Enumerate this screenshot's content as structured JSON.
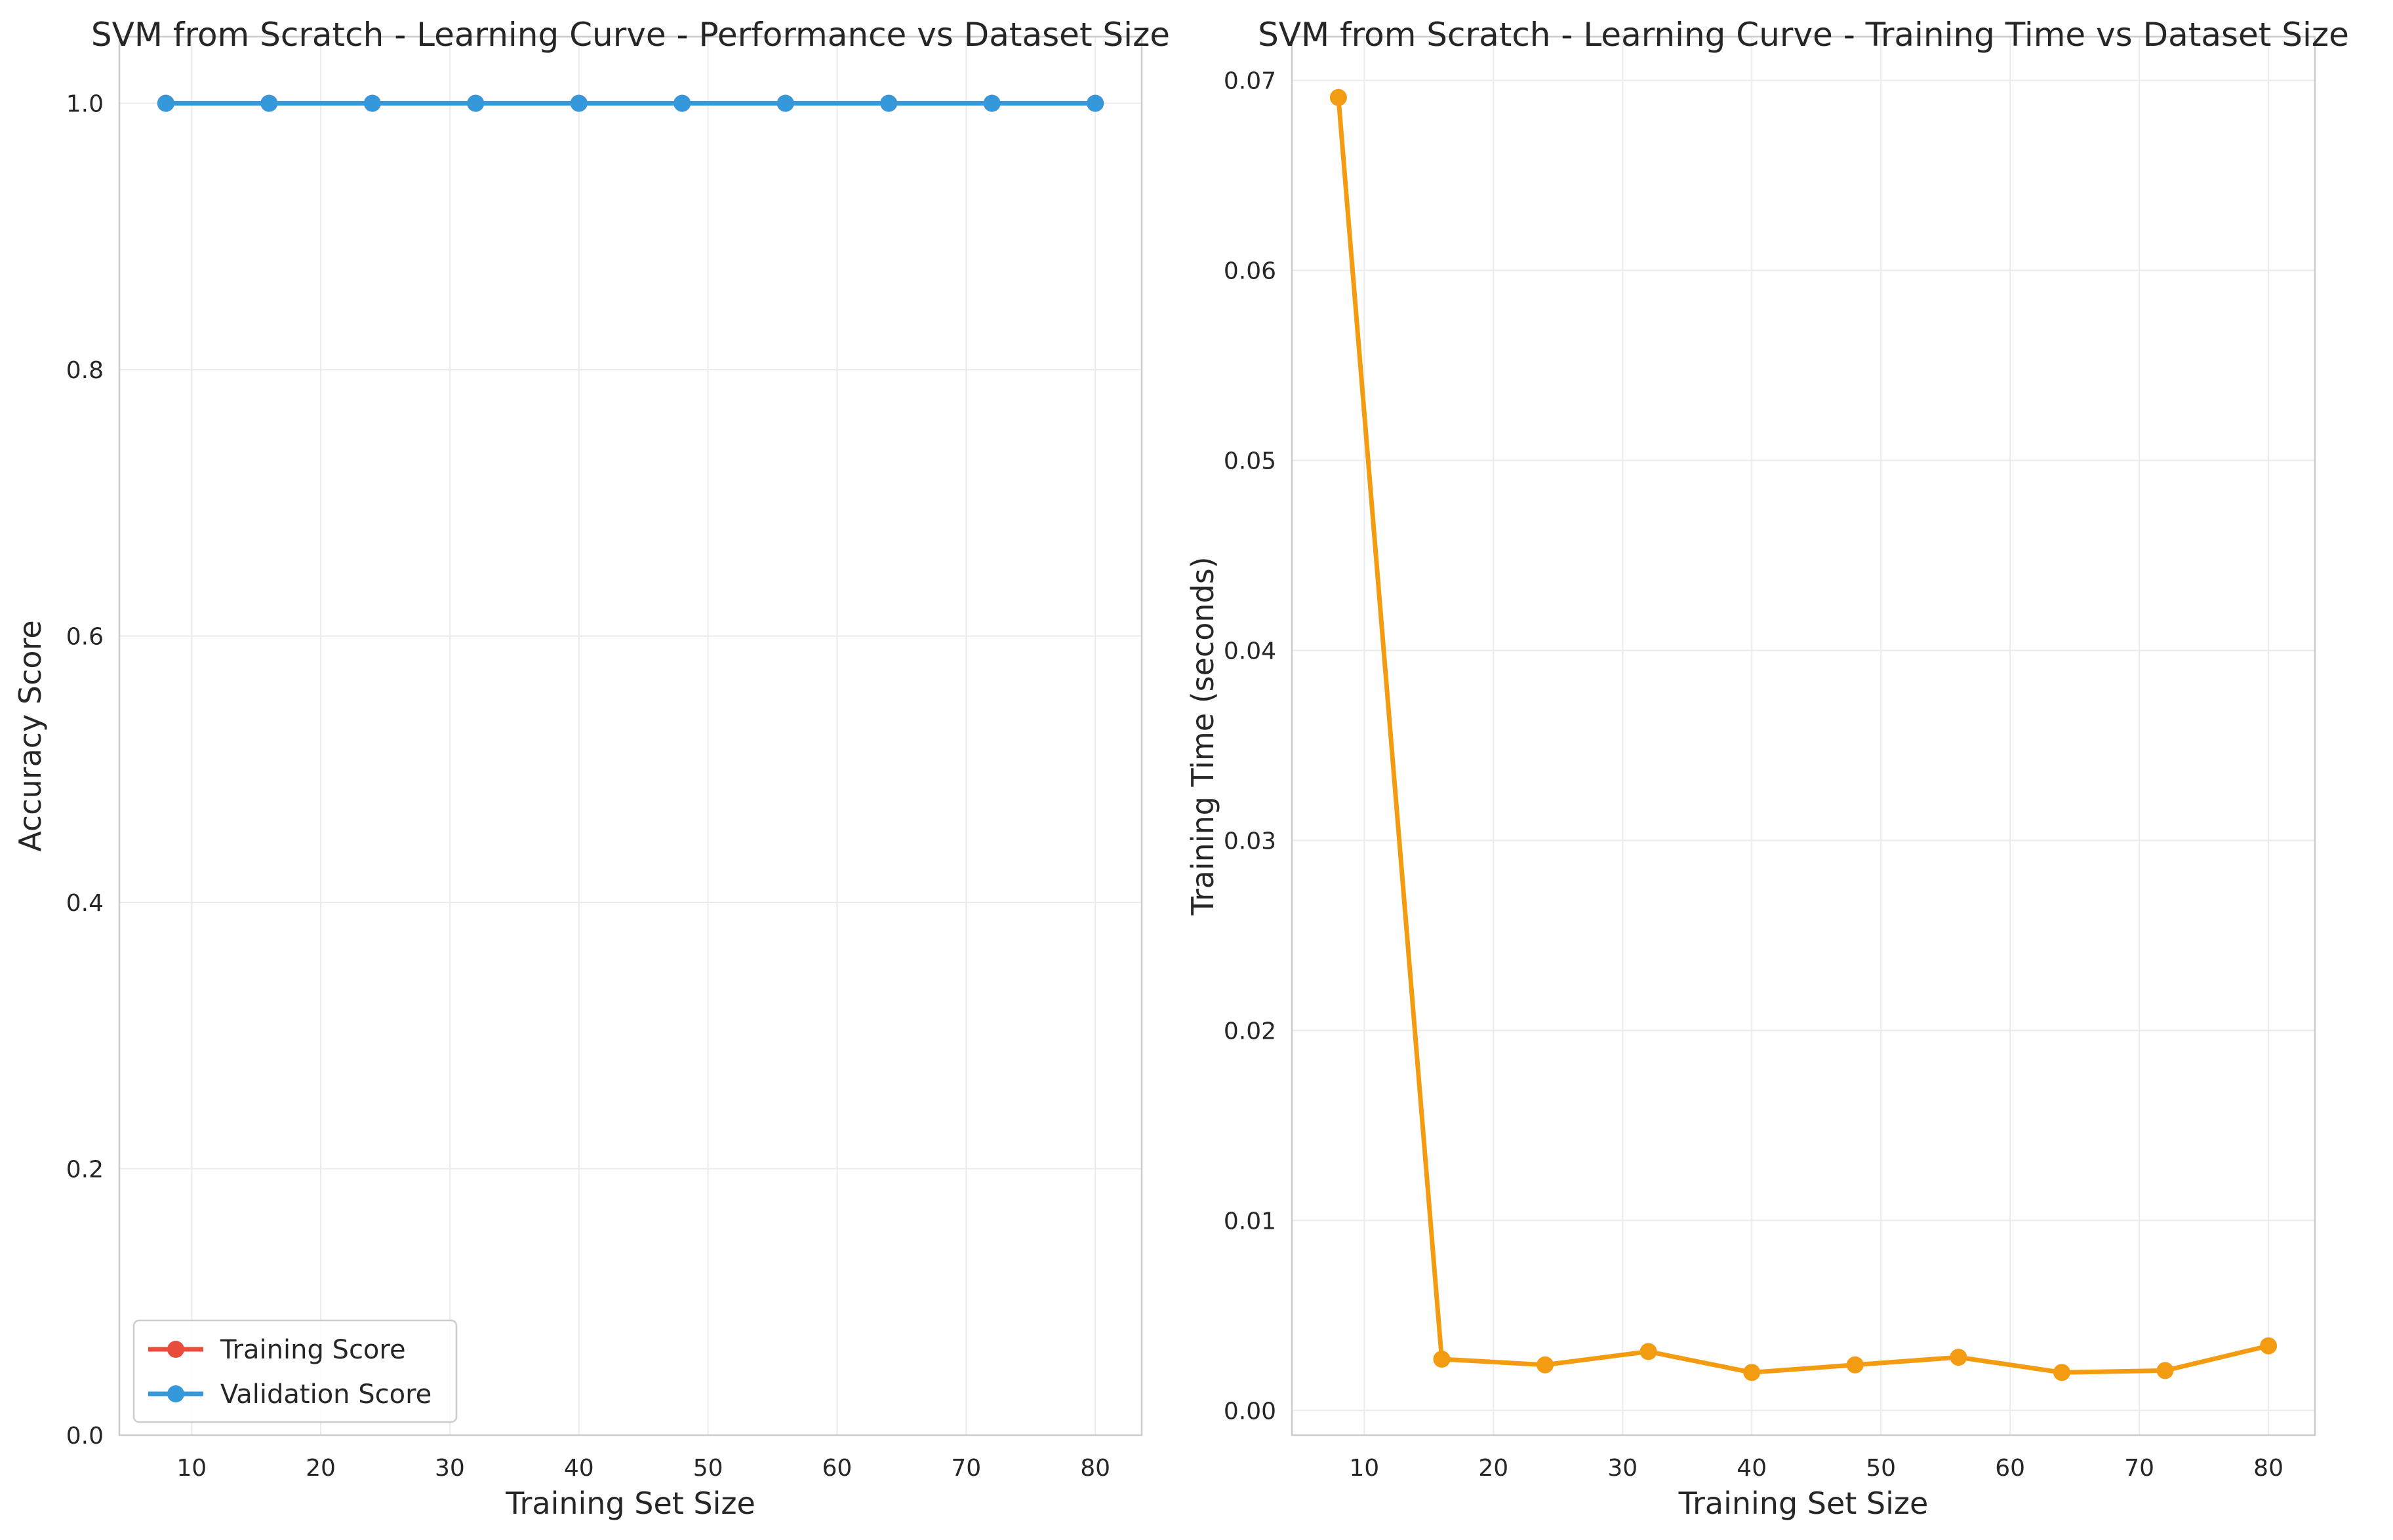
{
  "chart_data": [
    {
      "type": "line",
      "title": "SVM from Scratch - Learning Curve - Performance vs Dataset Size",
      "xlabel": "Training Set Size",
      "ylabel": "Accuracy Score",
      "x": [
        8,
        16,
        24,
        32,
        40,
        48,
        56,
        64,
        72,
        80
      ],
      "xlim": [
        4.4,
        83.6
      ],
      "ylim": [
        0.0,
        1.05
      ],
      "xticks": [
        10,
        20,
        30,
        40,
        50,
        60,
        70,
        80
      ],
      "xtick_labels": [
        "10",
        "20",
        "30",
        "40",
        "50",
        "60",
        "70",
        "80"
      ],
      "yticks": [
        0.0,
        0.2,
        0.4,
        0.6,
        0.8,
        1.0
      ],
      "ytick_labels": [
        "0.0",
        "0.2",
        "0.4",
        "0.6",
        "0.8",
        "1.0"
      ],
      "grid": true,
      "legend_position": "lower-left",
      "series": [
        {
          "name": "Training Score",
          "color": "#e74c3c",
          "values": [
            1.0,
            1.0,
            1.0,
            1.0,
            1.0,
            1.0,
            1.0,
            1.0,
            1.0,
            1.0
          ]
        },
        {
          "name": "Validation Score",
          "color": "#3498db",
          "values": [
            1.0,
            1.0,
            1.0,
            1.0,
            1.0,
            1.0,
            1.0,
            1.0,
            1.0,
            1.0
          ]
        }
      ]
    },
    {
      "type": "line",
      "title": "SVM from Scratch - Learning Curve - Training Time vs Dataset Size",
      "xlabel": "Training Set Size",
      "ylabel": "Training Time (seconds)",
      "x": [
        8,
        16,
        24,
        32,
        40,
        48,
        56,
        64,
        72,
        80
      ],
      "xlim": [
        4.4,
        83.6
      ],
      "ylim": [
        -0.0013,
        0.0723
      ],
      "xticks": [
        10,
        20,
        30,
        40,
        50,
        60,
        70,
        80
      ],
      "xtick_labels": [
        "10",
        "20",
        "30",
        "40",
        "50",
        "60",
        "70",
        "80"
      ],
      "yticks": [
        0.0,
        0.01,
        0.02,
        0.03,
        0.04,
        0.05,
        0.06,
        0.07
      ],
      "ytick_labels": [
        "0.00",
        "0.01",
        "0.02",
        "0.03",
        "0.04",
        "0.05",
        "0.06",
        "0.07"
      ],
      "grid": true,
      "series": [
        {
          "color": "#f39c12",
          "values": [
            0.0691,
            0.0027,
            0.0024,
            0.0031,
            0.002,
            0.0024,
            0.0028,
            0.002,
            0.0021,
            0.0034
          ]
        }
      ]
    }
  ]
}
